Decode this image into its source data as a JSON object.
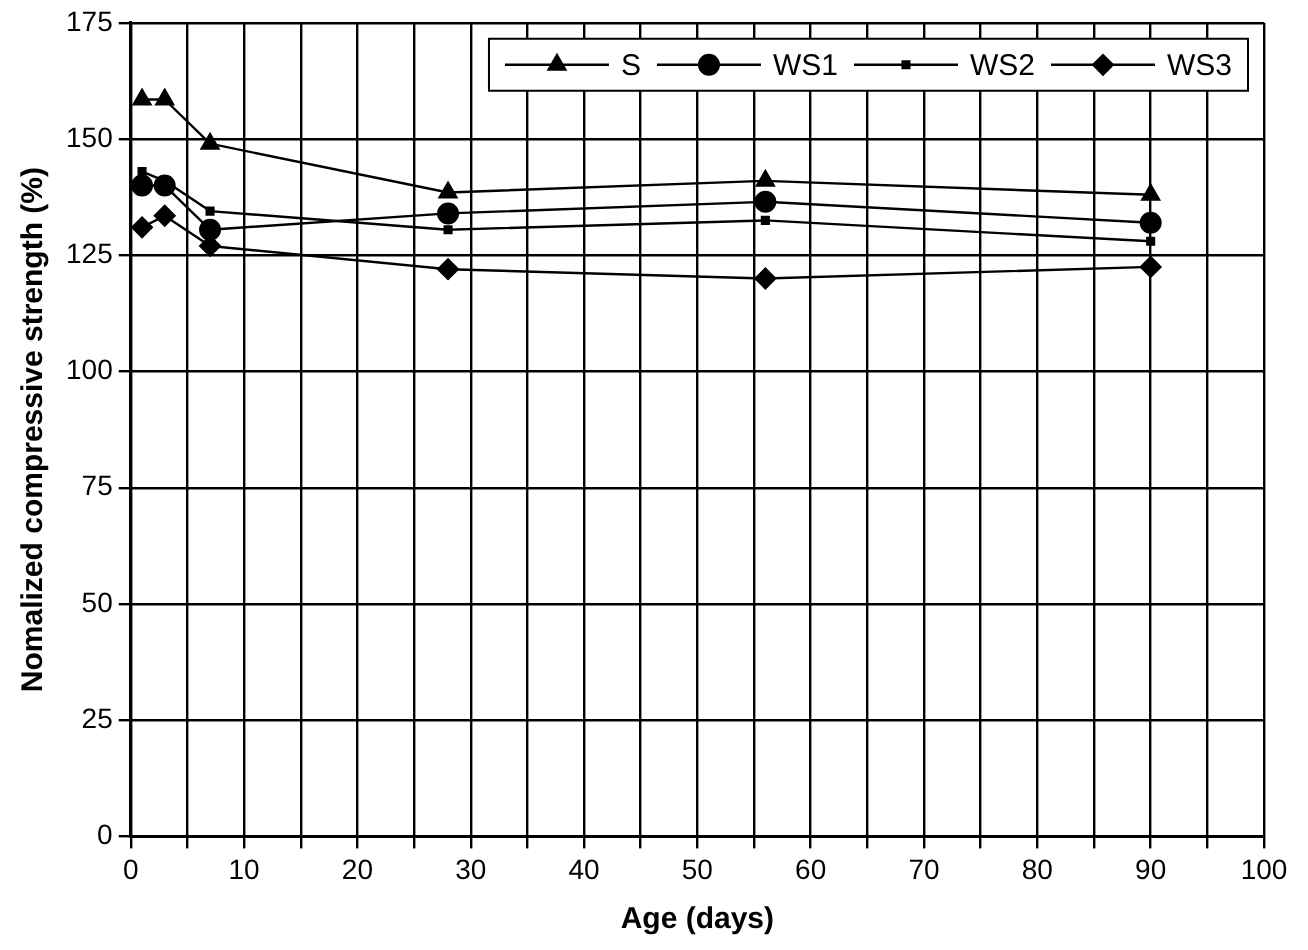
{
  "chart_data": {
    "type": "line",
    "xlabel": "Age (days)",
    "ylabel": "Nomalized compressive strength (%)",
    "x": [
      1,
      3,
      7,
      28,
      56,
      90
    ],
    "series": [
      {
        "name": "S",
        "color": "#000000",
        "marker": "triangle",
        "values": [
          158.5,
          158.5,
          149,
          138.5,
          141,
          138
        ]
      },
      {
        "name": "WS1",
        "color": "#000000",
        "marker": "circle",
        "values": [
          140,
          140,
          130.5,
          134,
          136.5,
          132
        ]
      },
      {
        "name": "WS2",
        "color": "#000000",
        "marker": "square",
        "values": [
          143,
          141,
          134.5,
          130.5,
          132.5,
          128
        ]
      },
      {
        "name": "WS3",
        "color": "#000000",
        "marker": "diamond",
        "values": [
          131,
          133.5,
          127,
          122,
          120,
          122.5
        ]
      }
    ],
    "xlim": [
      0,
      100
    ],
    "xticks": [
      0,
      {
        "value": 5,
        "label": null
      },
      10,
      {
        "value": 15,
        "label": null
      },
      20,
      {
        "value": 25,
        "label": null
      },
      30,
      {
        "value": 35,
        "label": null
      },
      40,
      {
        "value": 45,
        "label": null
      },
      50,
      {
        "value": 55,
        "label": null
      },
      60,
      {
        "value": 65,
        "label": null
      },
      70,
      {
        "value": 75,
        "label": null
      },
      80,
      {
        "value": 85,
        "label": null
      },
      90,
      {
        "value": 95,
        "label": null
      },
      100
    ],
    "ylim": [
      0,
      175
    ],
    "yticks": [
      0,
      25,
      50,
      75,
      100,
      125,
      150,
      175
    ],
    "grid": true,
    "legend": "top right",
    "line_style": "solid"
  }
}
